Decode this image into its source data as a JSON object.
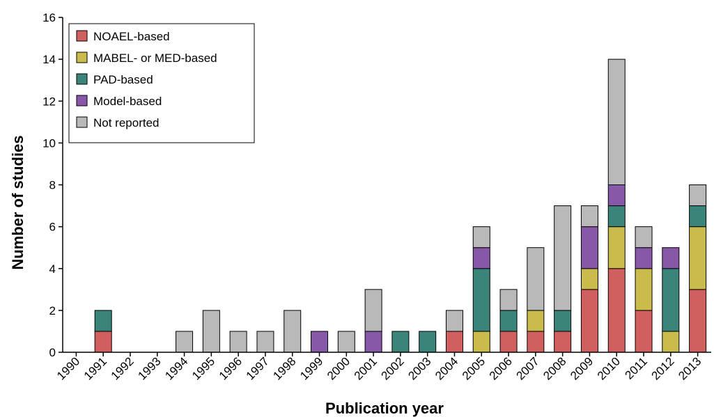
{
  "chart_data": {
    "type": "bar",
    "stacked": true,
    "xlabel": "Publication year",
    "ylabel": "Number of studies",
    "ylim": [
      0,
      16
    ],
    "yticks": [
      0,
      2,
      4,
      6,
      8,
      10,
      12,
      14,
      16
    ],
    "grid": false,
    "legend_position": "top-left",
    "categories": [
      "1990",
      "1991",
      "1992",
      "1993",
      "1994",
      "1995",
      "1996",
      "1997",
      "1998",
      "1999",
      "2000",
      "2001",
      "2002",
      "2003",
      "2004",
      "2005",
      "2006",
      "2007",
      "2008",
      "2009",
      "2010",
      "2011",
      "2012",
      "2013"
    ],
    "series": [
      {
        "name": "NOAEL-based",
        "color": "#d25f5f",
        "values": [
          0,
          1,
          0,
          0,
          0,
          0,
          0,
          0,
          0,
          0,
          0,
          0,
          0,
          0,
          1,
          0,
          1,
          1,
          1,
          3,
          4,
          2,
          0,
          3
        ]
      },
      {
        "name": "MABEL- or MED-based",
        "color": "#c9bb4c",
        "values": [
          0,
          0,
          0,
          0,
          0,
          0,
          0,
          0,
          0,
          0,
          0,
          0,
          0,
          0,
          0,
          1,
          0,
          1,
          0,
          1,
          2,
          2,
          1,
          3
        ]
      },
      {
        "name": "PAD-based",
        "color": "#3b8479",
        "values": [
          0,
          1,
          0,
          0,
          0,
          0,
          0,
          0,
          0,
          0,
          0,
          0,
          1,
          1,
          0,
          3,
          1,
          0,
          1,
          0,
          1,
          0,
          3,
          1
        ]
      },
      {
        "name": "Model-based",
        "color": "#8758a8",
        "values": [
          0,
          0,
          0,
          0,
          0,
          0,
          0,
          0,
          0,
          1,
          0,
          1,
          0,
          0,
          0,
          1,
          0,
          0,
          0,
          2,
          1,
          1,
          1,
          0
        ]
      },
      {
        "name": "Not reported",
        "color": "#b9b9b9",
        "values": [
          0,
          0,
          0,
          0,
          1,
          2,
          1,
          1,
          2,
          0,
          1,
          2,
          0,
          0,
          1,
          1,
          1,
          3,
          5,
          1,
          6,
          1,
          0,
          1
        ]
      }
    ]
  }
}
